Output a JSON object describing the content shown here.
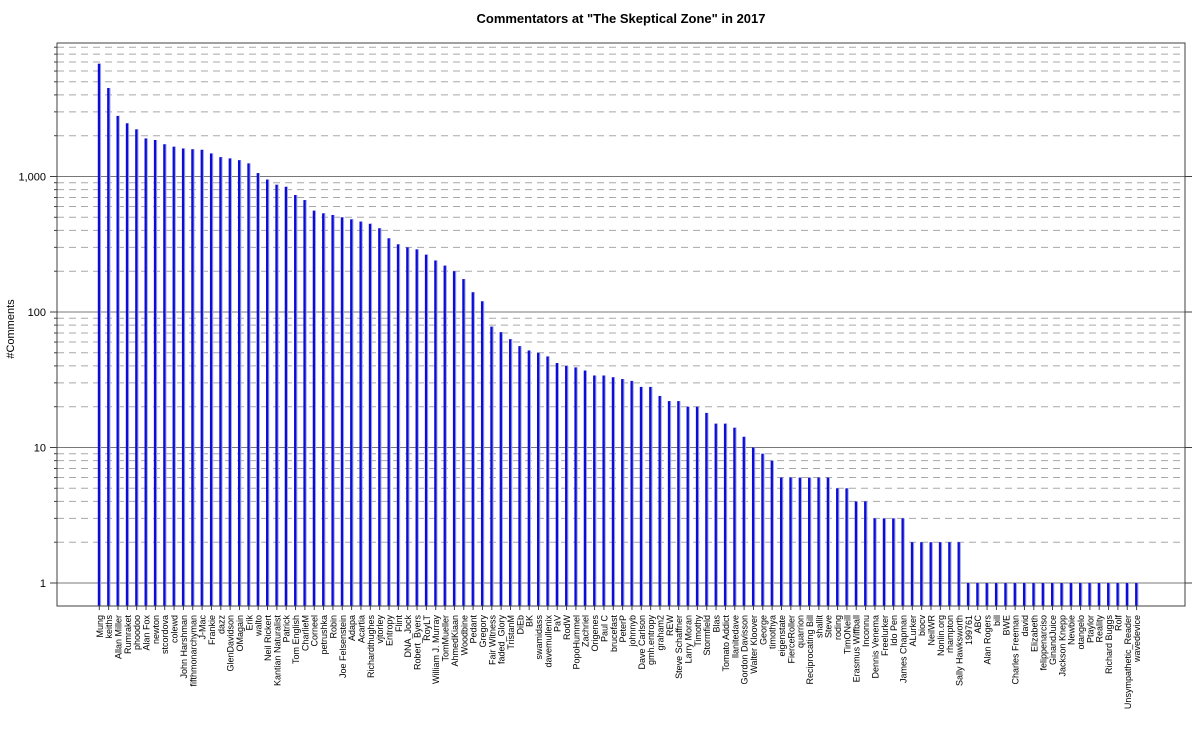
{
  "chart_data": {
    "type": "bar",
    "title": "Commentators at \"The Skeptical Zone\" in 2017",
    "xlabel": "",
    "ylabel": "#Comments",
    "y_scale": "log",
    "ylim": [
      0.68,
      9700
    ],
    "ytick_values": [
      1,
      10,
      100,
      1000
    ],
    "ytick_labels": [
      "1",
      "10",
      "100",
      "1,000"
    ],
    "grid": "major-solid-minor-dashed",
    "legend": "none",
    "bar_color": "#0c0cd6",
    "bar_highlight_color": "#a3a8ea",
    "major_grid_color": "#787878",
    "minor_grid_color": "#a8a8a8",
    "border_color": "#404040",
    "categories": [
      "Mung",
      "keiths",
      "Allan Miller",
      "Rumraket",
      "phoodoo",
      "Alan Fox",
      "newton",
      "stcordova",
      "colewd",
      "John Harshman",
      "fifthmonarchyman",
      "J-Mac",
      "Frankie",
      "dazz",
      "GlenDavidson",
      "OMagain",
      "Erik",
      "walto",
      "Neil Rickert",
      "Kantian Naturalist",
      "Patrick",
      "Tom English",
      "CharlieM",
      "Corneel",
      "petrushka",
      "Robin",
      "Joe Felsenstein",
      "Adapa",
      "Acartia",
      "Richardthughes",
      "vjtorley",
      "Entropy",
      "Flint",
      "DNA_Jock",
      "Robert_Byers",
      "RoyLT",
      "William J. Murray",
      "TomMueller",
      "AhmedKiaan",
      "Woodbine",
      "Pedant",
      "Gregory",
      "Fair Witness",
      "faded_Glory",
      "TristanM",
      "DiEb",
      "BK",
      "swamidass",
      "davemullenix",
      "PaV",
      "RodW",
      "PopoHummel",
      "Zachriel",
      "Origenes",
      "Paul C",
      "brucefast",
      "PeterP",
      "johnnyb",
      "Dave Carlson",
      "gmh.entropy",
      "graham2",
      "REW",
      "Steve Schaffner",
      "Larry Moran",
      "Timothy",
      "Stormfield",
      "Blas",
      "Tomato Addict",
      "llanitedave",
      "Gordon Davisson",
      "Walter Kloover",
      "George",
      "timothya",
      "eigenstate",
      "FierceRoller",
      "quarrion",
      "Reciprocating Bill",
      "shallit",
      "Steve",
      "roding",
      "TimONeill",
      "Erasmus Wiffball",
      "Inconnu",
      "Dennis Venema",
      "Freelurker",
      "Ido Pen",
      "James Chapman",
      "ALurker",
      "biocv",
      "NeilWR",
      "Nonlin.org",
      "rhampton",
      "Sally Hawksworth",
      "199761",
      "ABC",
      "Alan Rogers",
      "bill",
      "BWE",
      "Charles Freeman",
      "david",
      "Elizabeth",
      "felippenarciso",
      "GinandJuice",
      "Jackson Knepp",
      "Newbie",
      "otangelo",
      "Ptaylor",
      "Reality",
      "Richard Buggs",
      "Rolf",
      "Unsympathetic_Reader",
      "wavedevice"
    ],
    "values": [
      6800,
      4500,
      2800,
      2470,
      2230,
      1910,
      1860,
      1730,
      1660,
      1610,
      1590,
      1575,
      1480,
      1390,
      1360,
      1320,
      1250,
      1060,
      950,
      870,
      840,
      730,
      670,
      560,
      535,
      520,
      500,
      483,
      465,
      448,
      415,
      350,
      316,
      300,
      290,
      265,
      240,
      220,
      200,
      175,
      140,
      120,
      78,
      71,
      63,
      56,
      52,
      50,
      47,
      42,
      40,
      39,
      37,
      34,
      34,
      33,
      32,
      31,
      28,
      28,
      24,
      22,
      22,
      20,
      20,
      18,
      15,
      15,
      14,
      12,
      10,
      9,
      8,
      6,
      6,
      6,
      6,
      6,
      6,
      5,
      5,
      4,
      4,
      3,
      3,
      3,
      3,
      2,
      2,
      2,
      2,
      2,
      2,
      1,
      1,
      1,
      1,
      1,
      1,
      1,
      1,
      1,
      1,
      1,
      1,
      1,
      1,
      1,
      1,
      1,
      1,
      1
    ]
  }
}
